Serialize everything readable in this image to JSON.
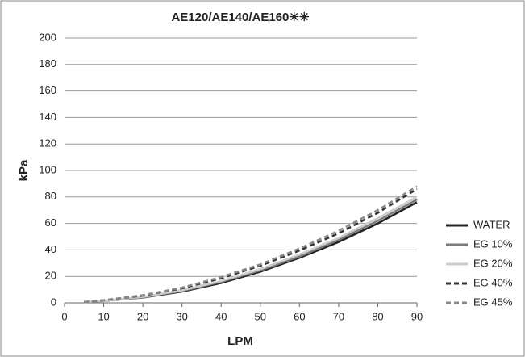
{
  "chart_data": {
    "type": "line",
    "title": "AE120/AE140/AE160✳✳",
    "x_label": "LPM",
    "y_label": "kPa",
    "x": [
      5,
      10,
      20,
      30,
      40,
      50,
      60,
      70,
      80,
      90
    ],
    "series": [
      {
        "name": "WATER",
        "color": "#222222",
        "dash": false,
        "values": [
          0.5,
          1.5,
          4,
          8.5,
          15,
          23.5,
          34,
          46,
          60,
          76
        ]
      },
      {
        "name": "EG 10%",
        "color": "#7a7a7a",
        "dash": false,
        "values": [
          0.5,
          1.5,
          4.2,
          9,
          15.8,
          24.5,
          35,
          47.5,
          62,
          78
        ]
      },
      {
        "name": "EG 20%",
        "color": "#cccccc",
        "dash": false,
        "values": [
          0.5,
          1.6,
          4.5,
          9.5,
          16.5,
          25.5,
          36.5,
          49,
          64,
          80
        ]
      },
      {
        "name": "EG 40%",
        "color": "#333333",
        "dash": true,
        "values": [
          0.6,
          2,
          5.5,
          11,
          18.5,
          28,
          39.5,
          52.5,
          68,
          86
        ]
      },
      {
        "name": "EG 45%",
        "color": "#888888",
        "dash": true,
        "values": [
          0.6,
          2,
          5.8,
          11.5,
          19.5,
          29,
          41,
          54.5,
          70,
          88
        ]
      }
    ],
    "xlim": [
      0,
      90
    ],
    "xticks": [
      0,
      10,
      20,
      30,
      40,
      50,
      60,
      70,
      80,
      90
    ],
    "ylim": [
      0,
      200
    ],
    "yticks": [
      0,
      20,
      40,
      60,
      80,
      100,
      120,
      140,
      160,
      180,
      200
    ],
    "grid": true,
    "legend": "right"
  }
}
